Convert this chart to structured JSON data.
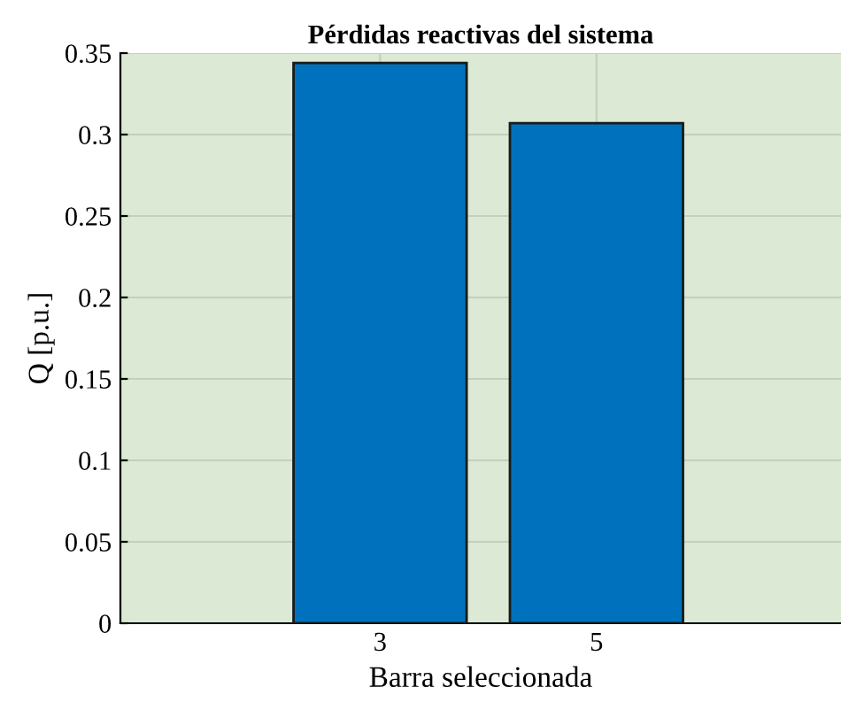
{
  "chart_data": {
    "type": "bar",
    "title": "Pérdidas reactivas del sistema",
    "xlabel": "Barra seleccionada",
    "ylabel": "Q [p.u.]",
    "categories": [
      "3",
      "5"
    ],
    "values": [
      0.344,
      0.307
    ],
    "color": "#0072bd",
    "ylim": [
      0,
      0.35
    ],
    "yticks": [
      0,
      0.05,
      0.1,
      0.15,
      0.2,
      0.25,
      0.3,
      0.35
    ],
    "grid": true
  }
}
